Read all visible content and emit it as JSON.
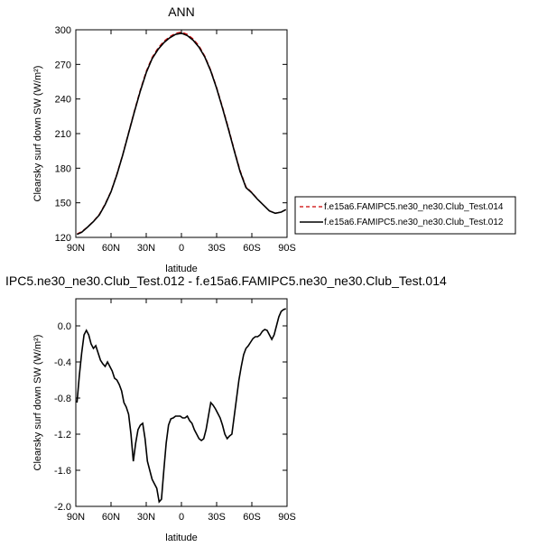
{
  "chart_data": [
    {
      "type": "line",
      "title": "ANN",
      "xlabel": "latitude",
      "ylabel": "Clearsky surf down SW (W/m²)",
      "xlim": [
        90,
        -90
      ],
      "ylim": [
        120,
        300
      ],
      "xticks": [
        90,
        60,
        30,
        0,
        -30,
        -60,
        -90
      ],
      "xticklabels": [
        "90N",
        "60N",
        "30N",
        "0",
        "30S",
        "60S",
        "90S"
      ],
      "yticks": [
        120,
        150,
        180,
        210,
        240,
        270,
        300
      ],
      "yticklabels": [
        "120",
        "150",
        "180",
        "210",
        "240",
        "270",
        "300"
      ],
      "legend_position": "right",
      "series": [
        {
          "name": "f.e15a6.FAMIPC5.ne30_ne30.Club_Test.014",
          "color": "#cc0000",
          "dash": true,
          "x": [
            89,
            85,
            80,
            75,
            70,
            65,
            60,
            55,
            50,
            45,
            40,
            35,
            30,
            25,
            20,
            15,
            10,
            5,
            0,
            -5,
            -10,
            -15,
            -20,
            -25,
            -30,
            -35,
            -40,
            -45,
            -50,
            -55,
            -60,
            -65,
            -70,
            -75,
            -80,
            -85,
            -89
          ],
          "y": [
            123,
            125,
            129,
            134,
            140,
            149,
            160,
            175,
            192,
            211,
            230,
            248,
            264,
            276,
            284,
            290,
            294,
            297,
            298,
            296,
            292,
            286,
            277,
            265,
            250,
            233,
            215,
            196,
            178,
            164,
            159,
            153,
            148,
            143,
            141,
            142,
            144
          ]
        },
        {
          "name": "f.e15a6.FAMIPC5.ne30_ne30.Club_Test.012",
          "color": "#000000",
          "dash": false,
          "x": [
            89,
            85,
            80,
            75,
            70,
            65,
            60,
            55,
            50,
            45,
            40,
            35,
            30,
            25,
            20,
            15,
            10,
            5,
            0,
            -5,
            -10,
            -15,
            -20,
            -25,
            -30,
            -35,
            -40,
            -45,
            -50,
            -55,
            -60,
            -65,
            -70,
            -75,
            -80,
            -85,
            -89
          ],
          "y": [
            122.6,
            124.5,
            128.9,
            133.7,
            139.4,
            148.5,
            159.5,
            174.4,
            191.5,
            210.4,
            229.2,
            247.0,
            262.8,
            274.9,
            282.9,
            288.8,
            293.0,
            296.0,
            297.0,
            295.0,
            290.9,
            284.8,
            276.2,
            264.2,
            249.2,
            232.1,
            214.0,
            195.1,
            177.0,
            163.2,
            158.6,
            152.9,
            147.9,
            142.9,
            140.9,
            141.9,
            144.1
          ]
        }
      ]
    },
    {
      "type": "line",
      "title": "IPC5.ne30_ne30.Club_Test.012 - f.e15a6.FAMIPC5.ne30_ne30.Club_Test.014",
      "xlabel": "latitude",
      "ylabel": "Clearsky surf down SW (W/m²)",
      "xlim": [
        90,
        -90
      ],
      "ylim": [
        -2.0,
        0.3
      ],
      "xticks": [
        90,
        60,
        30,
        0,
        -30,
        -60,
        -90
      ],
      "xticklabels": [
        "90N",
        "60N",
        "30N",
        "0",
        "30S",
        "60S",
        "90S"
      ],
      "yticks": [
        -2.0,
        -1.6,
        -1.2,
        -0.8,
        -0.4,
        0.0
      ],
      "yticklabels": [
        "-2.0",
        "-1.6",
        "-1.2",
        "-0.8",
        "-0.4",
        "0.0"
      ],
      "series": [
        {
          "color": "#000000",
          "x": [
            89,
            87,
            85,
            83,
            81,
            79,
            77,
            75,
            73,
            71,
            69,
            67,
            65,
            63,
            61,
            59,
            57,
            55,
            53,
            51,
            49,
            47,
            45,
            43,
            41,
            39,
            37,
            35,
            33,
            31,
            29,
            27,
            25,
            23,
            21,
            19,
            17,
            15,
            13,
            11,
            9,
            7,
            5,
            3,
            1,
            -1,
            -3,
            -5,
            -7,
            -9,
            -11,
            -13,
            -15,
            -17,
            -19,
            -21,
            -23,
            -25,
            -27,
            -29,
            -31,
            -33,
            -35,
            -37,
            -39,
            -41,
            -43,
            -45,
            -47,
            -49,
            -51,
            -53,
            -55,
            -57,
            -59,
            -61,
            -63,
            -65,
            -67,
            -69,
            -71,
            -73,
            -75,
            -77,
            -79,
            -81,
            -83,
            -85,
            -87,
            -89
          ],
          "y": [
            -0.85,
            -0.55,
            -0.3,
            -0.1,
            -0.05,
            -0.1,
            -0.2,
            -0.25,
            -0.22,
            -0.3,
            -0.38,
            -0.42,
            -0.45,
            -0.4,
            -0.45,
            -0.5,
            -0.58,
            -0.6,
            -0.65,
            -0.72,
            -0.85,
            -0.9,
            -0.98,
            -1.2,
            -1.5,
            -1.3,
            -1.15,
            -1.1,
            -1.08,
            -1.25,
            -1.5,
            -1.6,
            -1.7,
            -1.75,
            -1.8,
            -1.95,
            -1.92,
            -1.6,
            -1.3,
            -1.1,
            -1.03,
            -1.02,
            -1.0,
            -1.0,
            -1.0,
            -1.02,
            -1.02,
            -1.0,
            -1.05,
            -1.08,
            -1.15,
            -1.2,
            -1.25,
            -1.27,
            -1.25,
            -1.15,
            -1.0,
            -0.85,
            -0.88,
            -0.92,
            -0.97,
            -1.02,
            -1.1,
            -1.2,
            -1.25,
            -1.22,
            -1.2,
            -1.0,
            -0.8,
            -0.6,
            -0.45,
            -0.32,
            -0.25,
            -0.22,
            -0.18,
            -0.14,
            -0.12,
            -0.12,
            -0.1,
            -0.06,
            -0.04,
            -0.05,
            -0.1,
            -0.15,
            -0.1,
            0.0,
            0.1,
            0.16,
            0.18,
            0.19
          ]
        }
      ]
    }
  ]
}
